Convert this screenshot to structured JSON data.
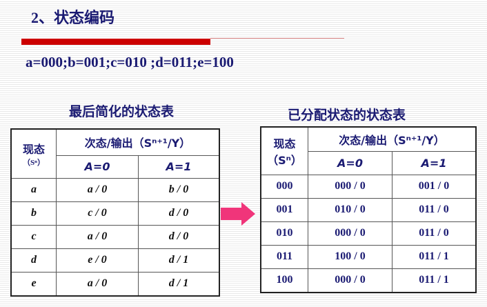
{
  "title": "2、状态编码",
  "encoding": "a=000;b=001;c=010 ;d=011;e=100",
  "left_table": {
    "caption": "最后简化的状态表",
    "h_present": "现态",
    "h_present_sub": "（Sⁿ）",
    "h_next": "次态/输出（Sⁿ⁺¹/Y）",
    "h_a0": "A=0",
    "h_a1": "A=1",
    "rows": [
      [
        "a",
        "a / 0",
        "b / 0"
      ],
      [
        "b",
        "c / 0",
        "d / 0"
      ],
      [
        "c",
        "a / 0",
        "d / 0"
      ],
      [
        "d",
        "e / 0",
        "d / 1"
      ],
      [
        "e",
        "a / 0",
        "d / 1"
      ]
    ]
  },
  "right_table": {
    "caption": "已分配状态的状态表",
    "h_present": "现态",
    "h_present_sub": "（Sⁿ）",
    "h_next": "次态/输出（Sⁿ⁺¹/Y）",
    "h_a0": "A=0",
    "h_a1": "A=1",
    "rows": [
      [
        "000",
        "000 / 0",
        "001 / 0"
      ],
      [
        "001",
        "010 / 0",
        "011 / 0"
      ],
      [
        "010",
        "000 / 0",
        "011 / 0"
      ],
      [
        "011",
        "100 / 0",
        "011 / 1"
      ],
      [
        "100",
        "000 / 0",
        "011 / 1"
      ]
    ]
  },
  "colors": {
    "accent_bar": "#cc0000",
    "text": "#1a1a72",
    "arrow": "#f0357a"
  },
  "icons": {
    "arrow": "right-arrow-icon"
  }
}
